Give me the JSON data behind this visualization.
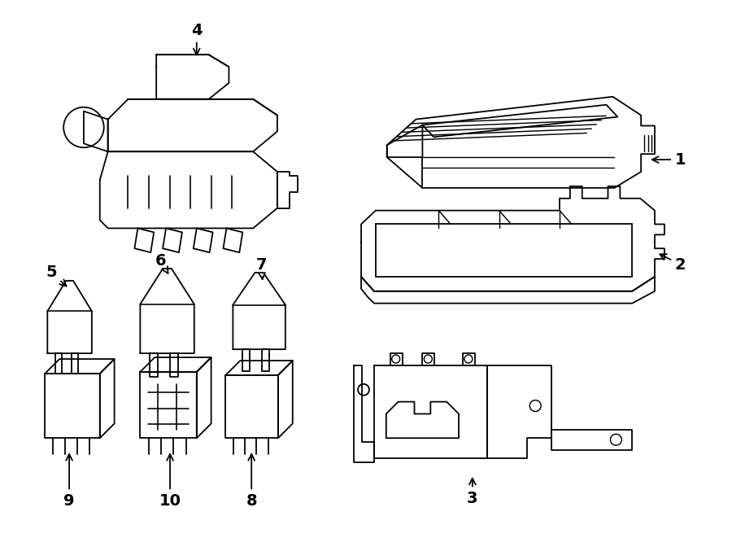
{
  "background_color": "#ffffff",
  "line_color": "#000000",
  "line_width": 1.3,
  "figure_width": 9.0,
  "figure_height": 6.61,
  "dpi": 100
}
